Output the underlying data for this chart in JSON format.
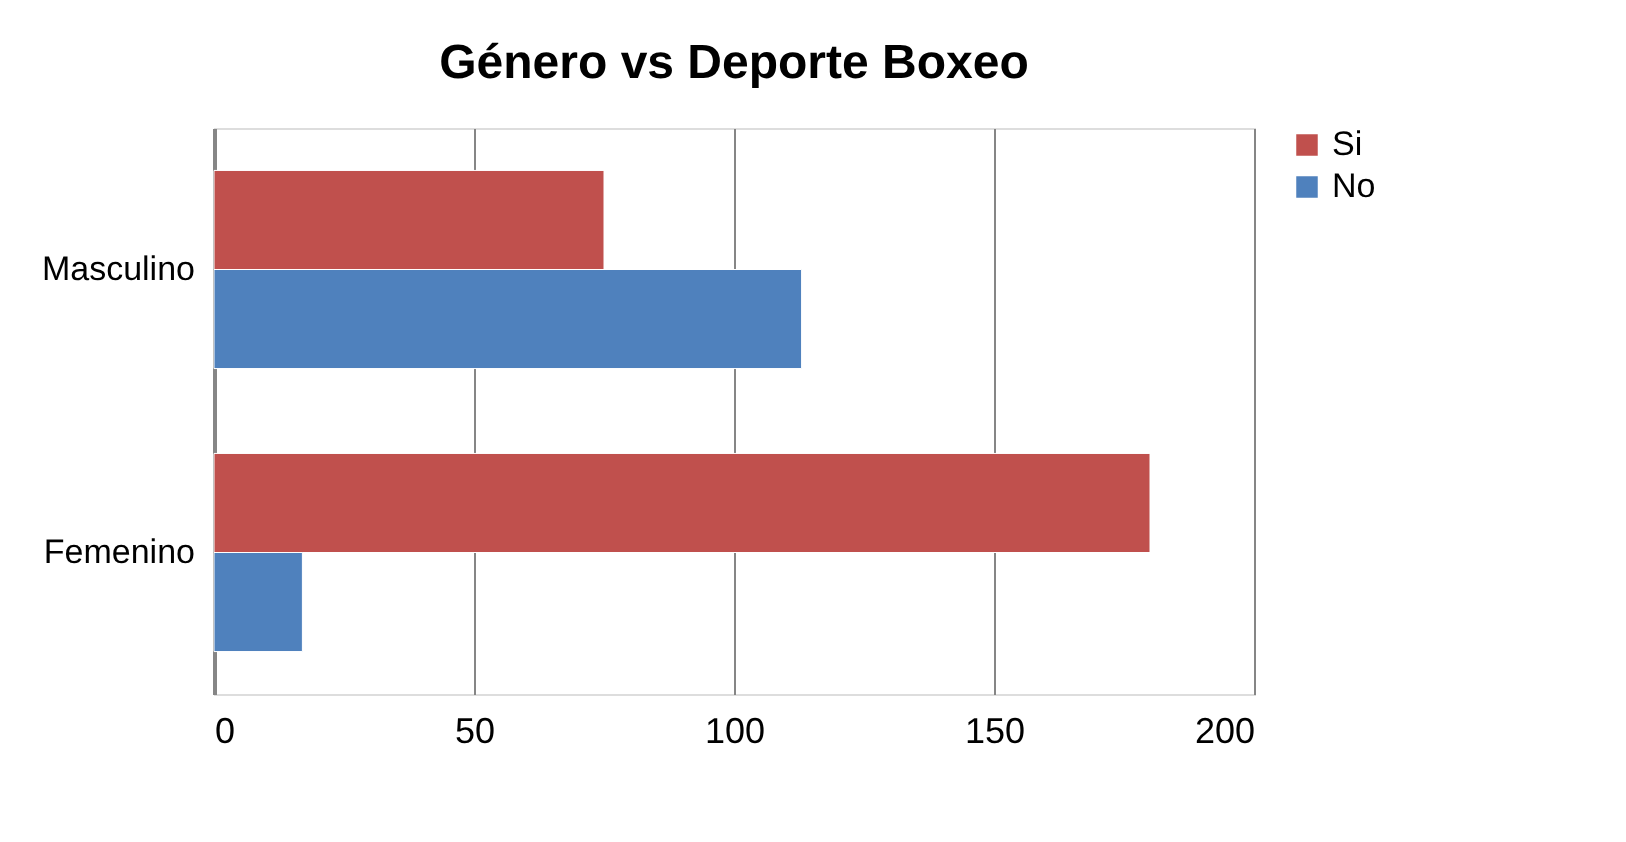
{
  "chart_data": {
    "type": "bar",
    "orientation": "horizontal",
    "title": "Género vs Deporte Boxeo",
    "categories": [
      "Masculino",
      "Femenino"
    ],
    "series": [
      {
        "name": "Si",
        "color": "#c0504d",
        "values": [
          75,
          180
        ]
      },
      {
        "name": "No",
        "color": "#4f81bd",
        "values": [
          113,
          17
        ]
      }
    ],
    "xlim": [
      0,
      200
    ],
    "xticks": [
      0,
      50,
      100,
      150,
      200
    ],
    "grid": "x",
    "legend": "right"
  }
}
